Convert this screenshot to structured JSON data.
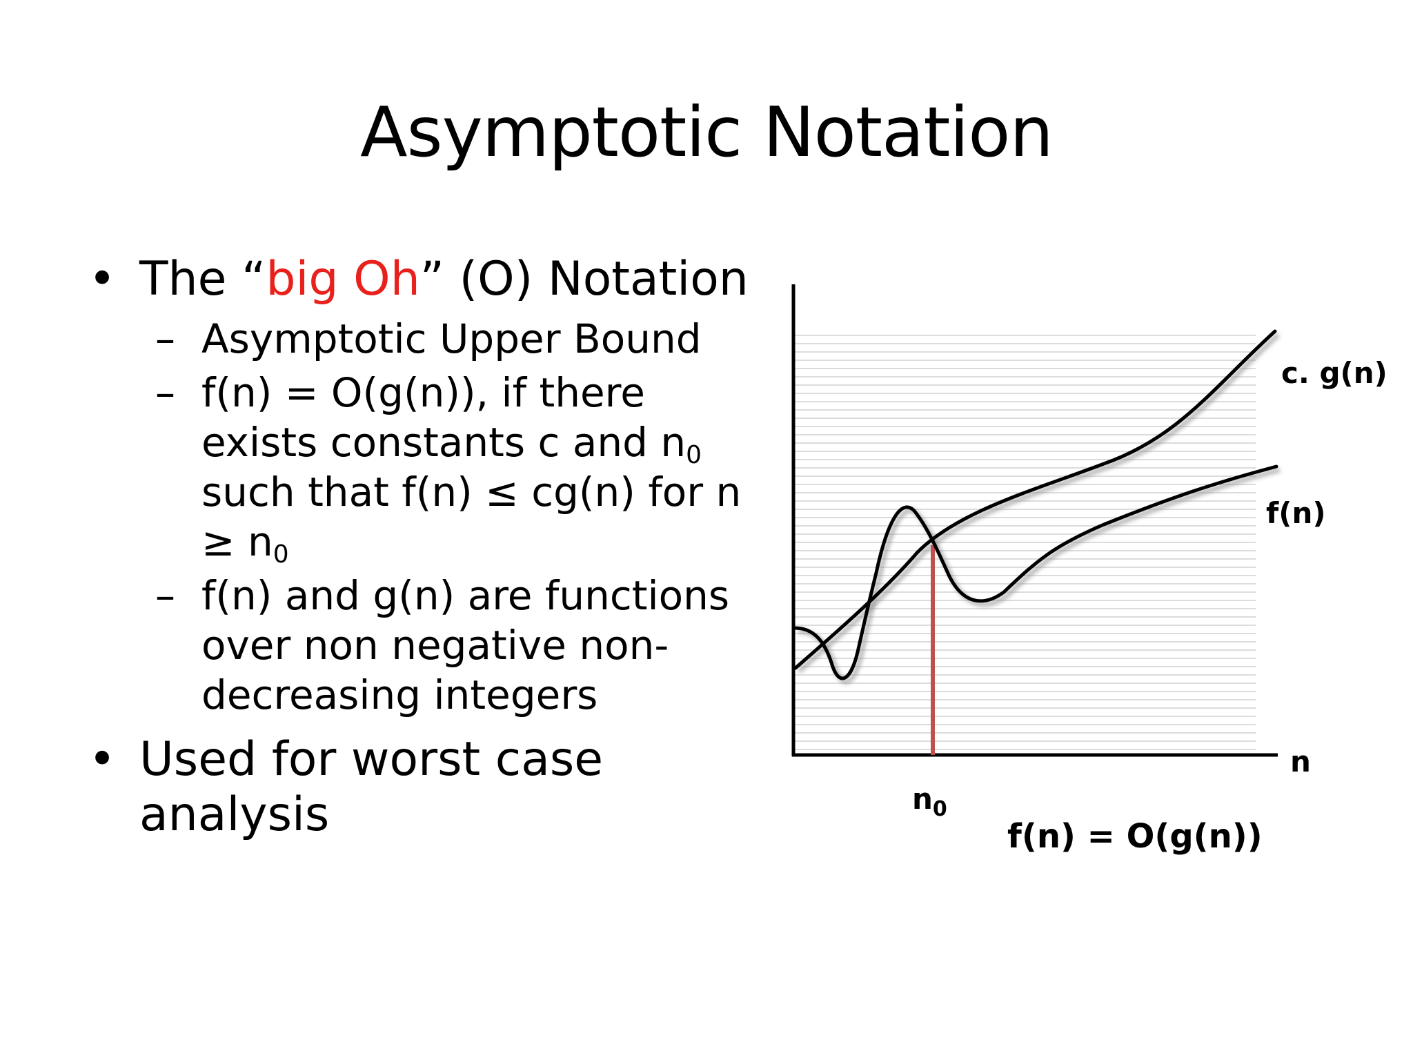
{
  "slide": {
    "title": "Asymptotic Notation",
    "bullets": {
      "b1_pre": "The “",
      "b1_red": "big Oh",
      "b1_post": "” (O) Notation",
      "sub1": "Asymptotic Upper Bound",
      "sub2_a": "f(n) = O(g(n)), if there exists constants c and n",
      "sub2_sub1": "0",
      "sub2_b": " such that f(n) ≤ cg(n) for n ≥ n",
      "sub2_sub2": "0",
      "sub3": "f(n) and g(n) are functions over non negative non-decreasing integers",
      "b2": "Used for worst case analysis"
    },
    "bullet_symbol": "•",
    "dash_symbol": "–"
  },
  "diagram": {
    "label_cg": "c. g(n)",
    "label_f": "f(n)",
    "label_n": "n",
    "label_n0": "n",
    "label_n0_sub": "0",
    "caption": "f(n) = O(g(n))",
    "threshold_color": "#c0504d"
  }
}
